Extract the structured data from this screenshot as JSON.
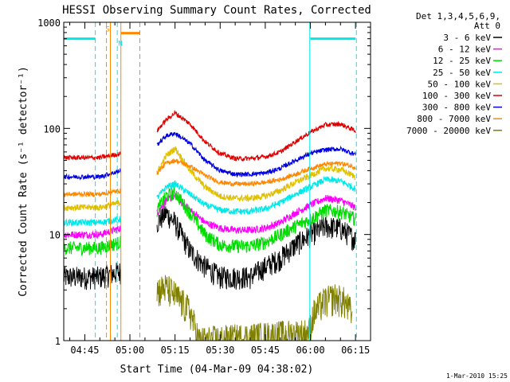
{
  "chart_data": {
    "type": "line",
    "title": "HESSI Observing Summary Count Rates, Corrected",
    "xlabel": "Start Time (04-Mar-09 04:38:02)",
    "ylabel": "Corrected Count Rate (s⁻¹ detector⁻¹)",
    "y_scale": "log",
    "ylim": [
      1,
      1000
    ],
    "xlim_minutes": [
      38.0,
      140.0
    ],
    "x_ticks": [
      {
        "m": 45,
        "label": "04:45"
      },
      {
        "m": 60,
        "label": "05:00"
      },
      {
        "m": 75,
        "label": "05:15"
      },
      {
        "m": 90,
        "label": "05:30"
      },
      {
        "m": 105,
        "label": "05:45"
      },
      {
        "m": 120,
        "label": "06:00"
      },
      {
        "m": 135,
        "label": "06:15"
      }
    ],
    "y_ticks": [
      {
        "v": 1,
        "label": "1"
      },
      {
        "v": 10,
        "label": "10"
      },
      {
        "v": 100,
        "label": "100"
      },
      {
        "v": 1000,
        "label": "1000"
      }
    ],
    "legend": {
      "header": [
        "Det 1,3,4,5,6,9,",
        "Att 0"
      ],
      "placement": "right",
      "entries": [
        {
          "label": "3 - 6 keV",
          "color": "#000000"
        },
        {
          "label": "6 - 12 keV",
          "color": "#ff00ff"
        },
        {
          "label": "12 - 25 keV",
          "color": "#00dd00"
        },
        {
          "label": "25 - 50 keV",
          "color": "#00e8e8"
        },
        {
          "label": "50 - 100 keV",
          "color": "#e0c000"
        },
        {
          "label": "100 - 300 keV",
          "color": "#e00000"
        },
        {
          "label": "300 - 800 keV",
          "color": "#0000e0"
        },
        {
          "label": "800 - 7000 keV",
          "color": "#ff8800"
        },
        {
          "label": "7000 - 20000 keV",
          "color": "#808000"
        }
      ]
    },
    "segments": [
      {
        "start": 38.0,
        "end": 57.0
      },
      {
        "start": 69.0,
        "end": 135.0
      }
    ],
    "series": [
      {
        "name": "3 - 6 keV",
        "color": "#000000",
        "jitter": 0.25,
        "discrete": true,
        "points": [
          [
            38,
            4
          ],
          [
            45,
            4
          ],
          [
            50,
            4
          ],
          [
            57,
            4.5
          ],
          [
            69,
            13
          ],
          [
            72,
            16
          ],
          [
            75,
            13
          ],
          [
            80,
            7
          ],
          [
            85,
            5
          ],
          [
            90,
            4
          ],
          [
            95,
            4
          ],
          [
            100,
            4
          ],
          [
            105,
            5
          ],
          [
            110,
            6
          ],
          [
            115,
            8
          ],
          [
            120,
            10
          ],
          [
            125,
            12
          ],
          [
            130,
            11.5
          ],
          [
            135,
            9
          ]
        ]
      },
      {
        "name": "6 - 12 keV",
        "color": "#ff00ff",
        "jitter": 0.08,
        "points": [
          [
            38,
            10
          ],
          [
            45,
            10
          ],
          [
            50,
            10
          ],
          [
            57,
            11.5
          ],
          [
            69,
            16
          ],
          [
            72,
            21
          ],
          [
            75,
            23
          ],
          [
            80,
            17
          ],
          [
            85,
            13
          ],
          [
            90,
            11.5
          ],
          [
            95,
            11
          ],
          [
            100,
            11
          ],
          [
            105,
            11.5
          ],
          [
            110,
            13
          ],
          [
            115,
            16
          ],
          [
            120,
            19
          ],
          [
            125,
            22
          ],
          [
            130,
            21
          ],
          [
            135,
            18
          ]
        ]
      },
      {
        "name": "12 - 25 keV",
        "color": "#00dd00",
        "jitter": 0.15,
        "points": [
          [
            38,
            7.5
          ],
          [
            45,
            7.5
          ],
          [
            50,
            7.5
          ],
          [
            57,
            8.5
          ],
          [
            69,
            17
          ],
          [
            72,
            23
          ],
          [
            75,
            25
          ],
          [
            80,
            16
          ],
          [
            85,
            10
          ],
          [
            90,
            8
          ],
          [
            95,
            7.8
          ],
          [
            100,
            7.8
          ],
          [
            105,
            8.5
          ],
          [
            110,
            10
          ],
          [
            115,
            12
          ],
          [
            120,
            14
          ],
          [
            125,
            17
          ],
          [
            130,
            16.5
          ],
          [
            135,
            14
          ]
        ]
      },
      {
        "name": "25 - 50 keV",
        "color": "#00e8e8",
        "jitter": 0.07,
        "points": [
          [
            38,
            13
          ],
          [
            45,
            13
          ],
          [
            50,
            13
          ],
          [
            57,
            14
          ],
          [
            69,
            22
          ],
          [
            72,
            28
          ],
          [
            75,
            30
          ],
          [
            80,
            24
          ],
          [
            85,
            19
          ],
          [
            90,
            17
          ],
          [
            95,
            16.5
          ],
          [
            100,
            16.5
          ],
          [
            105,
            17.5
          ],
          [
            110,
            20
          ],
          [
            115,
            24
          ],
          [
            120,
            28
          ],
          [
            125,
            33
          ],
          [
            130,
            32
          ],
          [
            135,
            27
          ]
        ]
      },
      {
        "name": "50 - 100 keV",
        "color": "#e0c000",
        "jitter": 0.07,
        "points": [
          [
            38,
            18
          ],
          [
            45,
            18
          ],
          [
            50,
            18
          ],
          [
            57,
            20
          ],
          [
            69,
            38
          ],
          [
            72,
            55
          ],
          [
            75,
            65
          ],
          [
            80,
            40
          ],
          [
            85,
            28
          ],
          [
            90,
            23
          ],
          [
            95,
            22
          ],
          [
            100,
            22
          ],
          [
            105,
            23
          ],
          [
            110,
            26
          ],
          [
            115,
            31
          ],
          [
            120,
            36
          ],
          [
            125,
            42
          ],
          [
            130,
            41
          ],
          [
            135,
            35
          ]
        ]
      },
      {
        "name": "100 - 300 keV",
        "color": "#e00000",
        "jitter": 0.05,
        "points": [
          [
            38,
            53
          ],
          [
            45,
            53
          ],
          [
            50,
            53
          ],
          [
            57,
            58
          ],
          [
            69,
            95
          ],
          [
            72,
            120
          ],
          [
            75,
            140
          ],
          [
            80,
            110
          ],
          [
            85,
            75
          ],
          [
            90,
            58
          ],
          [
            95,
            52
          ],
          [
            100,
            52
          ],
          [
            105,
            54
          ],
          [
            110,
            60
          ],
          [
            115,
            75
          ],
          [
            120,
            92
          ],
          [
            125,
            108
          ],
          [
            130,
            110
          ],
          [
            135,
            95
          ]
        ]
      },
      {
        "name": "300 - 800 keV",
        "color": "#0000e0",
        "jitter": 0.05,
        "points": [
          [
            38,
            35
          ],
          [
            45,
            35
          ],
          [
            50,
            35
          ],
          [
            57,
            40
          ],
          [
            69,
            70
          ],
          [
            72,
            85
          ],
          [
            75,
            90
          ],
          [
            80,
            72
          ],
          [
            85,
            50
          ],
          [
            90,
            40
          ],
          [
            95,
            37
          ],
          [
            100,
            37
          ],
          [
            105,
            38
          ],
          [
            110,
            42
          ],
          [
            115,
            50
          ],
          [
            120,
            58
          ],
          [
            125,
            63
          ],
          [
            130,
            64
          ],
          [
            135,
            57
          ]
        ]
      },
      {
        "name": "800 - 7000 keV",
        "color": "#ff8800",
        "jitter": 0.05,
        "points": [
          [
            38,
            24
          ],
          [
            45,
            24
          ],
          [
            50,
            24
          ],
          [
            57,
            26
          ],
          [
            69,
            38
          ],
          [
            72,
            47
          ],
          [
            75,
            50
          ],
          [
            80,
            44
          ],
          [
            85,
            36
          ],
          [
            90,
            31
          ],
          [
            95,
            30
          ],
          [
            100,
            30
          ],
          [
            105,
            31
          ],
          [
            110,
            33
          ],
          [
            115,
            37
          ],
          [
            120,
            42
          ],
          [
            125,
            46
          ],
          [
            130,
            47
          ],
          [
            135,
            43
          ]
        ]
      },
      {
        "name": "7000 - 20000 keV",
        "color": "#808000",
        "jitter": 0.35,
        "discrete": true,
        "points": [
          [
            69,
            3
          ],
          [
            72,
            3.2
          ],
          [
            75,
            2.7
          ],
          [
            80,
            1.9
          ],
          [
            83,
            1.0
          ],
          [
            119.5,
            1.2
          ],
          [
            121,
            1.8
          ],
          [
            124,
            2.3
          ],
          [
            128,
            2.6
          ],
          [
            131,
            2.4
          ],
          [
            134,
            1.8
          ]
        ]
      }
    ],
    "markers": [
      {
        "type": "bar",
        "color": "#00e8e8",
        "y": 700,
        "from": 38.0,
        "to": 48.5
      },
      {
        "type": "bar",
        "color": "#00e8e8",
        "y": 700,
        "from": 120.0,
        "to": 135.0
      },
      {
        "type": "bar",
        "color": "#ff8800",
        "y": 790,
        "from": 57.0,
        "to": 63.3
      },
      {
        "type": "vline",
        "color": "#00e8e8",
        "style": "solid",
        "x": 38.0
      },
      {
        "type": "vline",
        "color": "#00e8e8",
        "style": "solid",
        "x": 119.8
      },
      {
        "type": "vline",
        "color": "#00e8e8",
        "style": "dashed",
        "x": 48.5
      },
      {
        "type": "vline",
        "color": "#00e8e8",
        "style": "dashed",
        "x": 55.8
      },
      {
        "type": "vline",
        "color": "#00e8e8",
        "style": "dashed",
        "x": 135.3
      },
      {
        "type": "vline",
        "color": "#ff8800",
        "style": "dashed",
        "x": 52.2
      },
      {
        "type": "vline",
        "color": "#ff8800",
        "style": "solid",
        "x": 53.5
      },
      {
        "type": "vline",
        "color": "#ff8800",
        "style": "solid",
        "x": 57.0
      },
      {
        "type": "vline",
        "color": "#ff8800",
        "style": "dashed",
        "x": 63.3
      }
    ],
    "annotations": [
      {
        "text": "S",
        "color": "#ff8800",
        "x": 52.6,
        "y": 820
      },
      {
        "text": "N",
        "color": "#00e8e8",
        "x": 56.8,
        "y": 600
      }
    ]
  },
  "footer": {
    "stamp": "1-Mar-2010 15:25"
  }
}
